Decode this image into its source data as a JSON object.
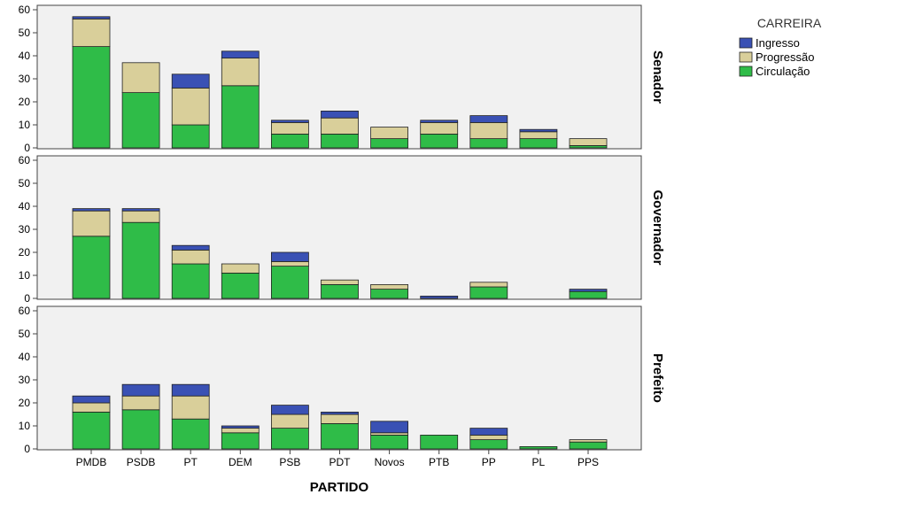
{
  "chart_data": {
    "type": "bar",
    "stacked": true,
    "categories": [
      "PMDB",
      "PSDB",
      "PT",
      "DEM",
      "PSB",
      "PDT",
      "Novos",
      "PTB",
      "PP",
      "PL",
      "PPS"
    ],
    "xlabel": "PARTIDO",
    "ylim": [
      0,
      60
    ],
    "yticks": [
      0,
      10,
      20,
      30,
      40,
      50,
      60
    ],
    "grid": false,
    "legend": {
      "title": "CARREIRA",
      "position": "top-right",
      "entries": [
        "Ingresso",
        "Progressão",
        "Circulação"
      ]
    },
    "colors": {
      "Circulação": "#2fbc48",
      "Progressão": "#d9cf9a",
      "Ingresso": "#3a51b4",
      "panel_bg": "#f1f1f1"
    },
    "panels": [
      {
        "label": "Senador",
        "series": [
          {
            "name": "Circulação",
            "values": [
              44,
              24,
              10,
              27,
              6,
              6,
              4,
              6,
              4,
              4,
              1
            ]
          },
          {
            "name": "Progressão",
            "values": [
              12,
              13,
              16,
              12,
              5,
              7,
              5,
              5,
              7,
              3,
              3
            ]
          },
          {
            "name": "Ingresso",
            "values": [
              1,
              0,
              6,
              3,
              1,
              3,
              0,
              1,
              3,
              1,
              0
            ]
          }
        ]
      },
      {
        "label": "Governador",
        "series": [
          {
            "name": "Circulação",
            "values": [
              27,
              33,
              15,
              11,
              14,
              6,
              4,
              0,
              5,
              0,
              3
            ]
          },
          {
            "name": "Progressão",
            "values": [
              11,
              5,
              6,
              4,
              2,
              2,
              2,
              0,
              2,
              0,
              0
            ]
          },
          {
            "name": "Ingresso",
            "values": [
              1,
              1,
              2,
              0,
              4,
              0,
              0,
              1,
              0,
              0,
              1
            ]
          }
        ]
      },
      {
        "label": "Prefeito",
        "series": [
          {
            "name": "Circulação",
            "values": [
              16,
              17,
              13,
              7,
              9,
              11,
              6,
              6,
              4,
              1,
              3
            ]
          },
          {
            "name": "Progressão",
            "values": [
              4,
              6,
              10,
              2,
              6,
              4,
              1,
              0,
              2,
              0,
              1
            ]
          },
          {
            "name": "Ingresso",
            "values": [
              3,
              5,
              5,
              1,
              4,
              1,
              5,
              0,
              3,
              0,
              0
            ]
          }
        ]
      }
    ]
  }
}
